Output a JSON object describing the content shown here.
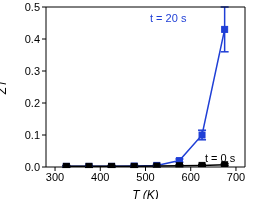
{
  "chart_data": {
    "type": "line",
    "x_label": "T (K)",
    "y_label": "ZT",
    "x": [
      325,
      375,
      425,
      475,
      525,
      575,
      625,
      675
    ],
    "series": [
      {
        "name": "t = 20 s",
        "color": "#1f3fd6",
        "marker": "square",
        "values": [
          0.002,
          0.002,
          0.002,
          0.003,
          0.005,
          0.02,
          0.1,
          0.43
        ],
        "errors": [
          0.002,
          0.002,
          0.002,
          0.002,
          0.003,
          0.005,
          0.015,
          0.07
        ]
      },
      {
        "name": "t = 0 s",
        "color": "#000000",
        "marker": "square",
        "values": [
          0.002,
          0.002,
          0.002,
          0.002,
          0.003,
          0.004,
          0.005,
          0.007
        ],
        "errors": [
          0.003,
          0.003,
          0.003,
          0.003,
          0.003,
          0.003,
          0.003,
          0.003
        ]
      }
    ],
    "xlim": [
      280,
      720
    ],
    "xticks": [
      300,
      400,
      500,
      600,
      700
    ],
    "ylim": [
      0,
      0.5
    ],
    "yticks": [
      {
        "value": 0,
        "label": "0.0"
      },
      0.1,
      0.2,
      0.3,
      0.4,
      0.5
    ],
    "grid": false
  }
}
